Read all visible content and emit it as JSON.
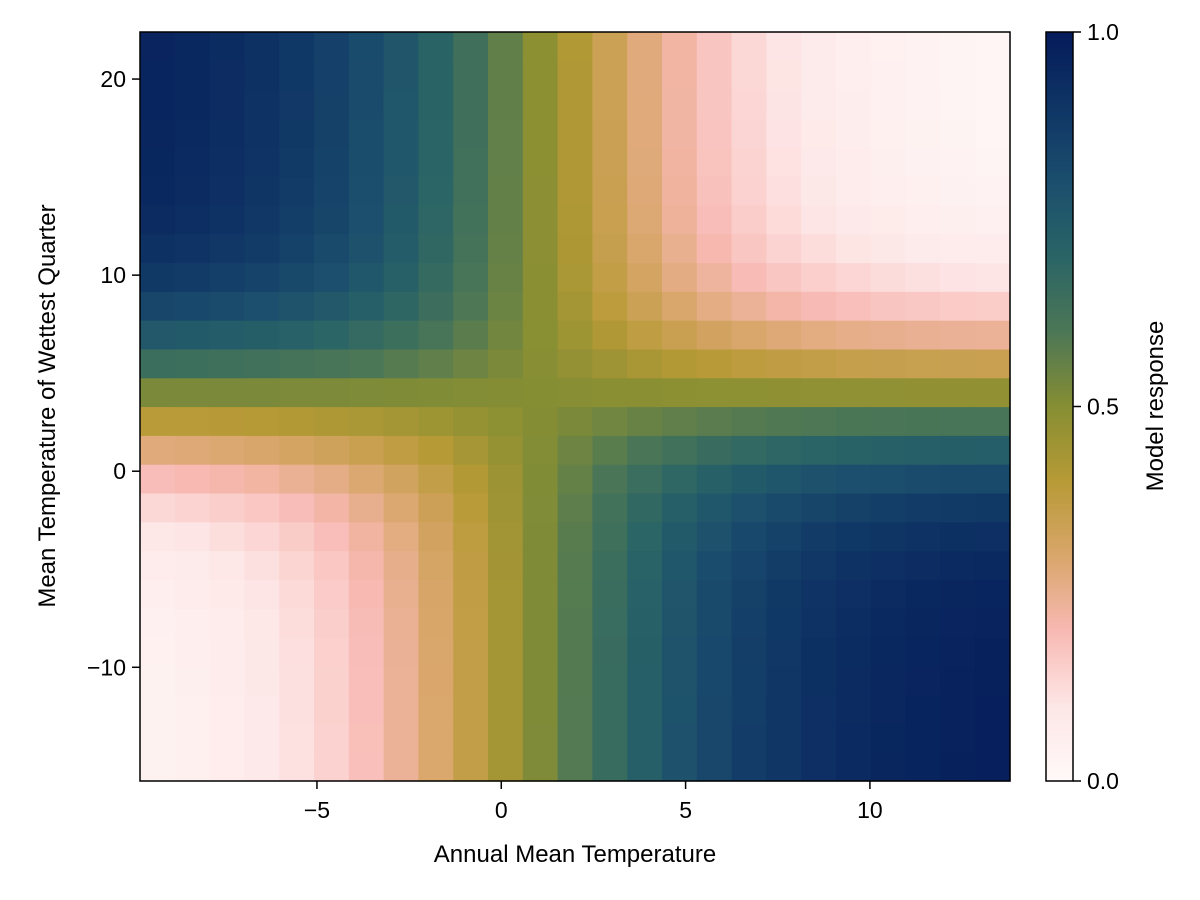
{
  "chart_data": {
    "type": "heatmap",
    "title": "",
    "xlabel": "Annual Mean Temperature",
    "ylabel": "Mean Temperature of Wettest Quarter",
    "xlim": [
      -9.8,
      13.8
    ],
    "ylim": [
      -15.8,
      22.4
    ],
    "x_ticks": [
      -5,
      0,
      5,
      10
    ],
    "y_ticks": [
      -10,
      0,
      10,
      20
    ],
    "grid": false,
    "x_cells": 25,
    "y_cells": 26,
    "x_centers": [
      -9.33,
      -8.38,
      -7.44,
      -6.5,
      -5.55,
      -4.61,
      -3.66,
      -2.72,
      -1.78,
      -0.83,
      0.11,
      1.06,
      2.0,
      2.94,
      3.89,
      4.83,
      5.78,
      6.72,
      7.66,
      8.61,
      9.55,
      10.5,
      11.44,
      12.38,
      13.33
    ],
    "y_centers": [
      -15.07,
      -13.6,
      -12.13,
      -10.66,
      -9.19,
      -7.72,
      -6.25,
      -4.78,
      -3.31,
      -1.84,
      -0.37,
      1.1,
      2.57,
      4.04,
      5.51,
      6.98,
      8.45,
      9.92,
      11.39,
      12.86,
      14.33,
      15.8,
      17.27,
      18.74,
      20.21,
      21.68
    ],
    "model": {
      "x_center": 0.9,
      "y_center": 3.8,
      "x_half_width": 3.1,
      "y_half_width": 2.6
    },
    "colorbar": {
      "label": "Model response",
      "range": [
        0.0,
        1.0
      ],
      "ticks": [
        0.0,
        0.5,
        1.0
      ],
      "tick_labels": [
        "0.0",
        "0.5",
        "1.0"
      ],
      "colormap": [
        "#fff9f8",
        "#fde6e6",
        "#f8b9b3",
        "#d9a66b",
        "#b79a36",
        "#868e33",
        "#4c7756",
        "#2a6466",
        "#1b4e6d",
        "#0f3565",
        "#051b5b"
      ]
    }
  }
}
